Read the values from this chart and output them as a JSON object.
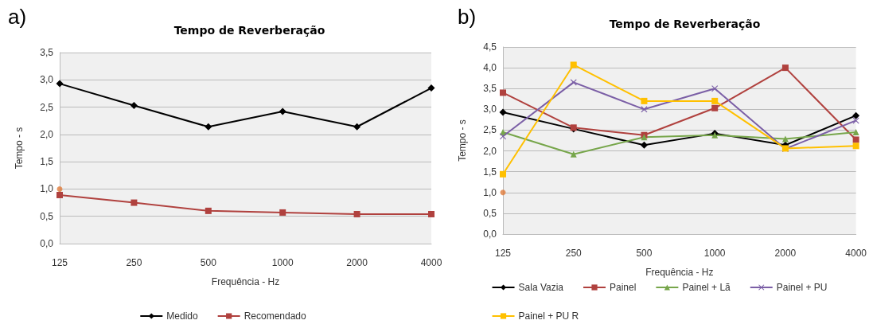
{
  "chart_data": [
    {
      "type": "line",
      "title": "Tempo de Reverberação",
      "xlabel": "Frequência - Hz",
      "ylabel": "Tempo - s",
      "annotations": [
        "a)"
      ],
      "categories": [
        "125",
        "250",
        "500",
        "1000",
        "2000",
        "4000"
      ],
      "series": [
        {
          "name": "Medido",
          "color": "#000000",
          "marker": "diamond",
          "values": [
            2.93,
            2.53,
            2.14,
            2.42,
            2.14,
            2.85
          ]
        },
        {
          "name": "Recomendado",
          "color": "#b0413e",
          "marker": "square",
          "values": [
            0.89,
            0.75,
            0.6,
            0.57,
            0.54,
            0.54
          ]
        },
        {
          "type": "scatter",
          "color": "#e07b39",
          "marker": "circle",
          "values": [
            1.0,
            null,
            null,
            null,
            null,
            null
          ]
        }
      ],
      "ylim": [
        0,
        3.5
      ],
      "yticks": [
        {
          "value": 0,
          "label": "0,0"
        },
        {
          "value": 0.5,
          "label": "0,5"
        },
        {
          "value": 1,
          "label": "1,0"
        },
        {
          "value": 1.5,
          "label": "1,5"
        },
        {
          "value": 2,
          "label": "2,0"
        },
        {
          "value": 2.5,
          "label": "2,5"
        },
        {
          "value": 3,
          "label": "3,0"
        },
        {
          "value": 3.5,
          "label": "3,5"
        }
      ],
      "grid": "y",
      "legend": "bottom",
      "line_style": "solid"
    },
    {
      "type": "line",
      "title": "Tempo de Reverberação",
      "xlabel": "Frequência - Hz",
      "ylabel": "Tempo - s",
      "annotations": [
        "b)"
      ],
      "categories": [
        "125",
        "250",
        "500",
        "1000",
        "2000",
        "4000"
      ],
      "series": [
        {
          "name": "Sala Vazia",
          "color": "#000000",
          "marker": "diamond",
          "values": [
            2.93,
            2.53,
            2.14,
            2.42,
            2.14,
            2.85
          ]
        },
        {
          "name": "Painel",
          "color": "#b0413e",
          "marker": "square",
          "values": [
            3.4,
            2.56,
            2.38,
            3.03,
            4.0,
            2.27
          ]
        },
        {
          "name": "Painel + Lã",
          "color": "#77a64b",
          "marker": "triangle",
          "values": [
            2.45,
            1.92,
            2.33,
            2.38,
            2.29,
            2.45
          ]
        },
        {
          "name": "Painel + PU",
          "color": "#7b5fa6",
          "marker": "cross",
          "values": [
            2.35,
            3.65,
            3.0,
            3.5,
            2.05,
            2.73
          ]
        },
        {
          "name": "Painel + PU R",
          "color": "#ffc000",
          "marker": "square",
          "values": [
            1.44,
            4.07,
            3.2,
            3.2,
            2.06,
            2.12
          ]
        },
        {
          "type": "scatter",
          "color": "#e07b39",
          "marker": "circle",
          "values": [
            1.0,
            null,
            null,
            null,
            null,
            null
          ]
        }
      ],
      "ylim": [
        0,
        4.5
      ],
      "yticks": [
        {
          "value": 0,
          "label": "0,0"
        },
        {
          "value": 0.5,
          "label": "0,5"
        },
        {
          "value": 1,
          "label": "1,0"
        },
        {
          "value": 1.5,
          "label": "1,5"
        },
        {
          "value": 2,
          "label": "2,0"
        },
        {
          "value": 2.5,
          "label": "2,5"
        },
        {
          "value": 3,
          "label": "3,0"
        },
        {
          "value": 3.5,
          "label": "3,5"
        },
        {
          "value": 4,
          "label": "4,0"
        },
        {
          "value": 4.5,
          "label": "4,5"
        }
      ],
      "grid": "y",
      "legend": "bottom",
      "line_style": "solid"
    }
  ]
}
